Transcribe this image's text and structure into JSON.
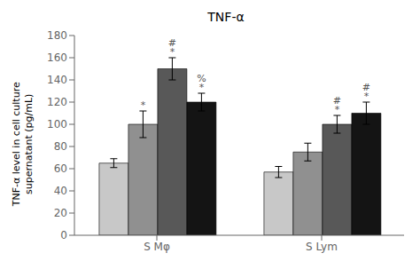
{
  "chart_data": {
    "type": "bar",
    "title": "TNF-α",
    "ylabel": "TNF-α level in cell culture\nsupernatant (pg/mL)",
    "categories": [
      "S Mφ",
      "S Lym"
    ],
    "series": [
      {
        "color": "#c8c8c8",
        "values": [
          65,
          57
        ],
        "errors": [
          4,
          5
        ]
      },
      {
        "color": "#909090",
        "values": [
          100,
          75
        ],
        "errors": [
          12,
          8
        ]
      },
      {
        "color": "#585858",
        "values": [
          150,
          100
        ],
        "errors": [
          10,
          8
        ]
      },
      {
        "color": "#141414",
        "values": [
          120,
          110
        ],
        "errors": [
          8,
          10
        ]
      }
    ],
    "ylim": [
      0,
      180
    ],
    "yticks": [
      0,
      20,
      40,
      60,
      80,
      100,
      120,
      140,
      160,
      180
    ],
    "grid": false,
    "annotations": [
      {
        "category": "S Mφ",
        "series": 1,
        "labels": [
          "*"
        ],
        "color": "#555555"
      },
      {
        "category": "S Mφ",
        "series": 2,
        "labels": [
          "#",
          "*"
        ],
        "color": "#555555"
      },
      {
        "category": "S Mφ",
        "series": 3,
        "labels": [
          "%",
          "*"
        ],
        "color": "#555555"
      },
      {
        "category": "S Lym",
        "series": 2,
        "labels": [
          "#",
          "*"
        ],
        "color": "#555555"
      },
      {
        "category": "S Lym",
        "series": 3,
        "labels": [
          "#",
          "*"
        ],
        "color": "#555555"
      }
    ]
  }
}
